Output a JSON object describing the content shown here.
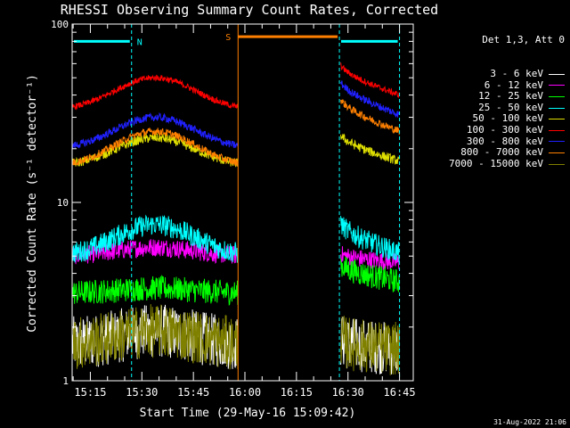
{
  "chart_data": {
    "type": "line",
    "title": "RHESSI Observing Summary Count Rates, Corrected",
    "xlabel": "Start Time (29-May-16 15:09:42)",
    "ylabel": "Corrected Count Rate (s⁻¹ detector⁻¹)",
    "y_scale": "log",
    "ylim": [
      1,
      100
    ],
    "y_ticks": [
      "1",
      "10",
      "100"
    ],
    "xlim": [
      "15:09:42",
      "16:49:00"
    ],
    "x_ticks": [
      "15:15",
      "15:30",
      "15:45",
      "16:00",
      "16:15",
      "16:30",
      "16:45"
    ],
    "legend_header": "Det 1,3, Att 0",
    "flags": [
      {
        "label": "N",
        "color": "#00ffff",
        "start": "15:09:42",
        "end": "15:27:00",
        "level": 80
      },
      {
        "label": "S",
        "color": "#ff8000",
        "start": "15:58:00",
        "end": "16:27:30",
        "level": 85
      },
      {
        "label": "",
        "color": "#00ffff",
        "start": "16:28:00",
        "end": "16:45:00",
        "level": 80
      }
    ],
    "boundaries": [
      {
        "time": "15:27:00",
        "color": "#00ffff"
      },
      {
        "time": "15:58:00",
        "color": "#ff8000"
      },
      {
        "time": "16:27:30",
        "color": "#00ffff"
      },
      {
        "time": "16:45:00",
        "color": "#00ffff"
      }
    ],
    "data_gaps": [
      [
        "15:58:00",
        "16:27:30"
      ]
    ],
    "series": [
      {
        "name": "3 - 6 keV",
        "color": "#ffffff",
        "before": {
          "base": 1.6,
          "peak": 1.9
        },
        "after": {
          "start": 1.7,
          "end": 1.5
        },
        "noise": 0.35
      },
      {
        "name": "6 - 12 keV",
        "color": "#ff00ff",
        "before": {
          "base": 5.0,
          "peak": 5.6
        },
        "after": {
          "start": 5.2,
          "end": 4.6
        },
        "noise": 0.12
      },
      {
        "name": "12 - 25 keV",
        "color": "#00ff00",
        "before": {
          "base": 3.1,
          "peak": 3.3
        },
        "after": {
          "start": 4.6,
          "end": 3.6
        },
        "noise": 0.16
      },
      {
        "name": "25 - 50 keV",
        "color": "#00ffff",
        "before": {
          "base": 5.0,
          "peak": 7.5
        },
        "after": {
          "start": 8.0,
          "end": 5.2
        },
        "noise": 0.14
      },
      {
        "name": "50 - 100 keV",
        "color": "#e0e000",
        "before": {
          "base": 16,
          "peak": 23
        },
        "after": {
          "start": 25,
          "end": 17
        },
        "noise": 0.06
      },
      {
        "name": "100 - 300 keV",
        "color": "#ff0000",
        "before": {
          "base": 33,
          "peak": 50
        },
        "after": {
          "start": 62,
          "end": 40
        },
        "noise": 0.04
      },
      {
        "name": "300 - 800 keV",
        "color": "#2020ff",
        "before": {
          "base": 20,
          "peak": 30
        },
        "after": {
          "start": 50,
          "end": 31
        },
        "noise": 0.05
      },
      {
        "name": "800 - 7000 keV",
        "color": "#ff8000",
        "before": {
          "base": 16,
          "peak": 25
        },
        "after": {
          "start": 40,
          "end": 25
        },
        "noise": 0.05
      },
      {
        "name": "7000 - 15000 keV",
        "color": "#808000",
        "before": {
          "base": 1.6,
          "peak": 1.9
        },
        "after": {
          "start": 1.7,
          "end": 1.5
        },
        "noise": 0.35
      }
    ]
  },
  "footer_timestamp": "31-Aug-2022 21:06"
}
